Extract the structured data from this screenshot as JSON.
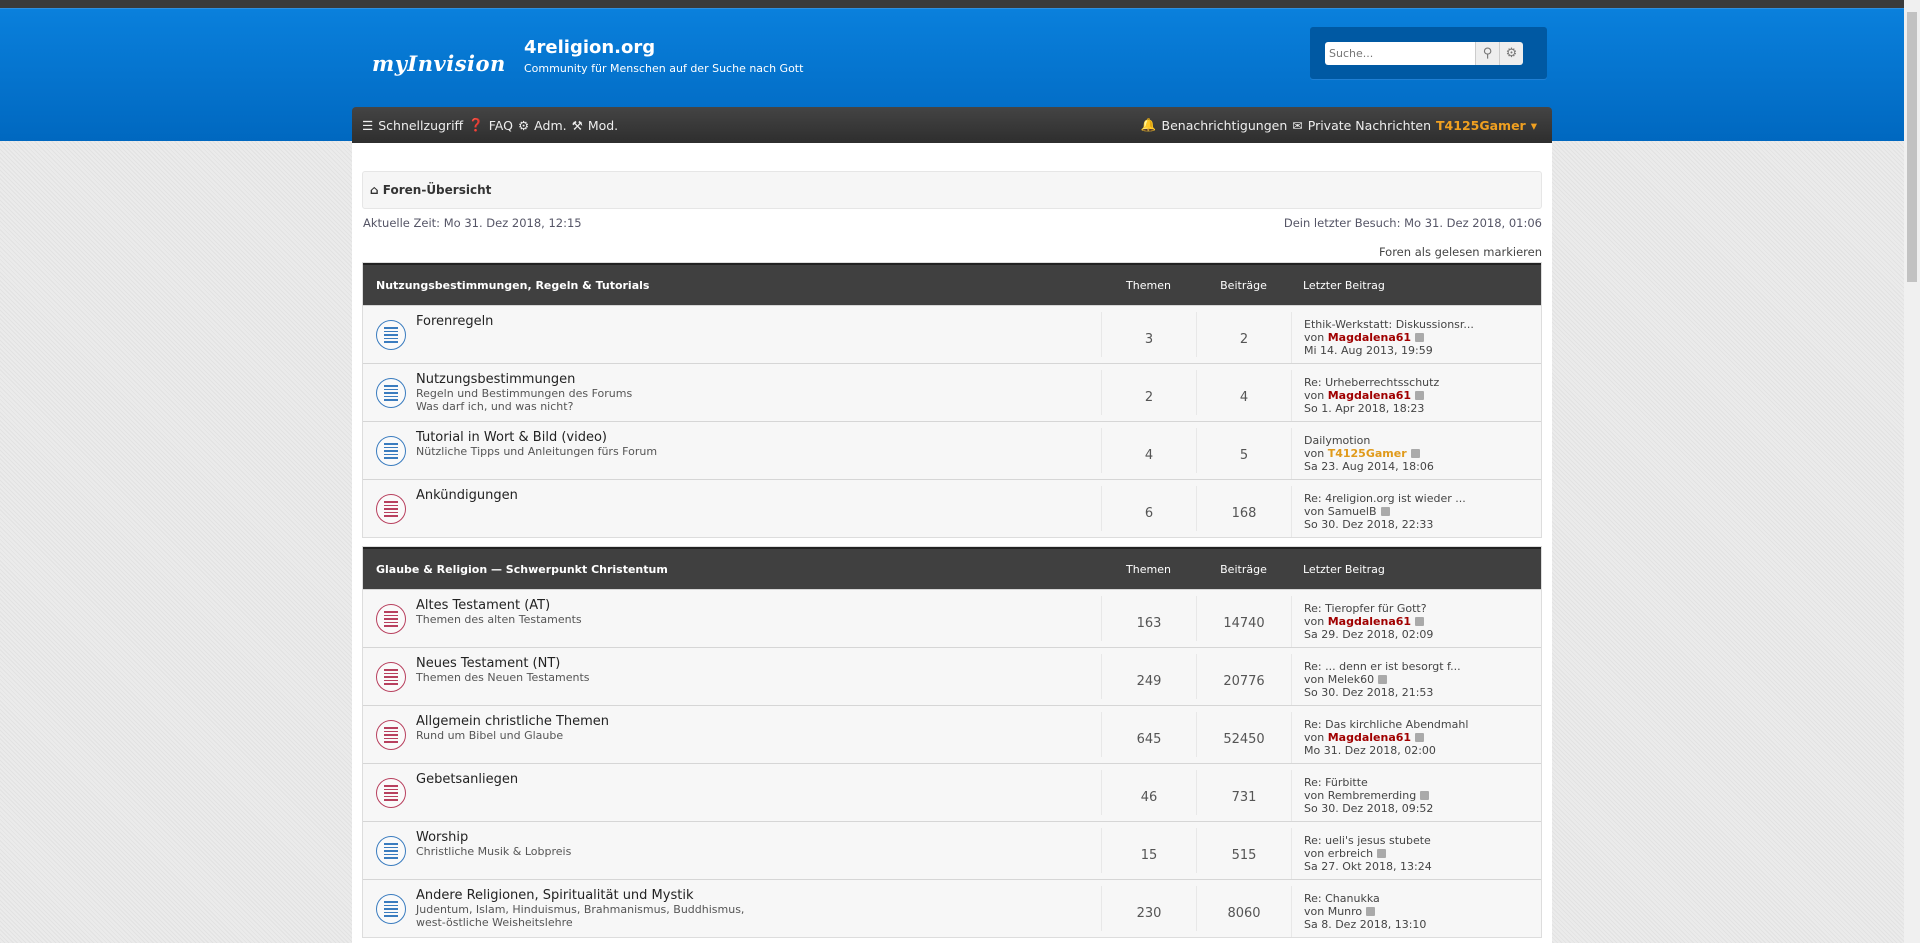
{
  "header": {
    "logo": "myInvision",
    "site_title": "4religion.org",
    "site_desc": "Community für Menschen auf der Suche nach Gott",
    "search_placeholder": "Suche..."
  },
  "nav": {
    "quick": "Schnellzugriff",
    "faq": "FAQ",
    "adm": "Adm.",
    "mod": "Mod.",
    "notifications": "Benachrichtigungen",
    "pm": "Private Nachrichten",
    "user": "T4125Gamer"
  },
  "breadcrumb": "Foren-Übersicht",
  "current_time": "Aktuelle Zeit: Mo 31. Dez 2018, 12:15",
  "last_visit": "Dein letzter Besuch: Mo 31. Dez 2018, 01:06",
  "mark_read": "Foren als gelesen markieren",
  "columns": {
    "topics": "Themen",
    "posts": "Beiträge",
    "last": "Letzter Beitrag"
  },
  "categories": [
    {
      "title": "Nutzungsbestimmungen, Regeln & Tutorials",
      "forums": [
        {
          "title": "Forenregeln",
          "desc": [],
          "icon": "blue",
          "topics": "3",
          "posts": "2",
          "last_title": "Ethik-Werkstatt: Diskussionsr...",
          "by": "von",
          "author": "Magdalena61",
          "author_style": "m",
          "date": "Mi 14. Aug 2013, 19:59"
        },
        {
          "title": "Nutzungsbestimmungen",
          "desc": [
            "Regeln und Bestimmungen des Forums",
            "Was darf ich, und was nicht?"
          ],
          "icon": "blue",
          "topics": "2",
          "posts": "4",
          "last_title": "Re: Urheberrechtsschutz",
          "by": "von",
          "author": "Magdalena61",
          "author_style": "m",
          "date": "So 1. Apr 2018, 18:23"
        },
        {
          "title": "Tutorial in Wort & Bild (video)",
          "desc": [
            "Nützliche Tipps und Anleitungen fürs Forum"
          ],
          "icon": "blue",
          "topics": "4",
          "posts": "5",
          "last_title": "Dailymotion",
          "by": "von",
          "author": "T4125Gamer",
          "author_style": "o",
          "date": "Sa 23. Aug 2014, 18:06"
        },
        {
          "title": "Ankündigungen",
          "desc": [],
          "icon": "red",
          "topics": "6",
          "posts": "168",
          "last_title": "Re: 4religion.org ist wieder ...",
          "by": "von",
          "author": "SamuelB",
          "author_style": "",
          "date": "So 30. Dez 2018, 22:33"
        }
      ]
    },
    {
      "title": "Glaube & Religion — Schwerpunkt Christentum",
      "forums": [
        {
          "title": "Altes Testament (AT)",
          "desc": [
            "Themen des alten Testaments"
          ],
          "icon": "red",
          "topics": "163",
          "posts": "14740",
          "last_title": "Re: Tieropfer für Gott?",
          "by": "von",
          "author": "Magdalena61",
          "author_style": "m",
          "date": "Sa 29. Dez 2018, 02:09"
        },
        {
          "title": "Neues Testament (NT)",
          "desc": [
            "Themen des Neuen Testaments"
          ],
          "icon": "red",
          "topics": "249",
          "posts": "20776",
          "last_title": "Re: ... denn er ist besorgt f...",
          "by": "von",
          "author": "Melek60",
          "author_style": "",
          "date": "So 30. Dez 2018, 21:53"
        },
        {
          "title": "Allgemein christliche Themen",
          "desc": [
            "Rund um Bibel und Glaube"
          ],
          "icon": "red",
          "topics": "645",
          "posts": "52450",
          "last_title": "Re: Das kirchliche Abendmahl",
          "by": "von",
          "author": "Magdalena61",
          "author_style": "m",
          "date": "Mo 31. Dez 2018, 02:00"
        },
        {
          "title": "Gebetsanliegen",
          "desc": [],
          "icon": "red",
          "topics": "46",
          "posts": "731",
          "last_title": "Re: Fürbitte",
          "by": "von",
          "author": "Rembremerding",
          "author_style": "",
          "date": "So 30. Dez 2018, 09:52"
        },
        {
          "title": "Worship",
          "desc": [
            "Christliche Musik & Lobpreis"
          ],
          "icon": "blue",
          "topics": "15",
          "posts": "515",
          "last_title": "Re: ueli's jesus stubete",
          "by": "von",
          "author": "erbreich",
          "author_style": "",
          "date": "Sa 27. Okt 2018, 13:24"
        },
        {
          "title": "Andere Religionen, Spiritualität und Mystik",
          "desc": [
            "Judentum, Islam, Hinduismus, Brahmanismus, Buddhismus,",
            "west-östliche Weisheitslehre"
          ],
          "icon": "blue",
          "topics": "230",
          "posts": "8060",
          "last_title": "Re: Chanukka",
          "by": "von",
          "author": "Munro",
          "author_style": "",
          "date": "Sa 8. Dez 2018, 13:10"
        }
      ]
    }
  ],
  "colors": {
    "header_blue": "#0a80dc",
    "nav_dark": "#333333",
    "mod_name": "#a00000",
    "user_name": "#e09a1a",
    "unread_icon": "#b8405e",
    "read_icon": "#3a7cbf"
  }
}
